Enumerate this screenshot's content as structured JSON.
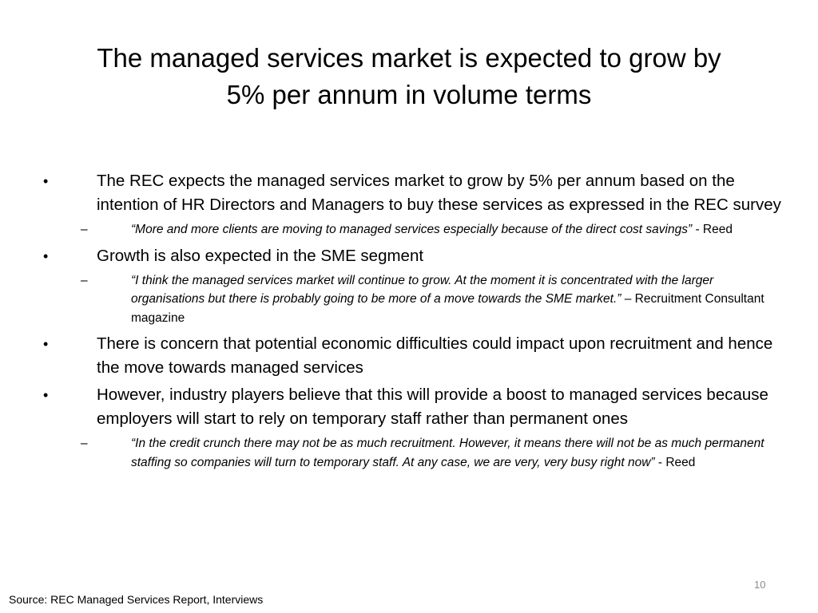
{
  "slide": {
    "title_line1": "The managed services market is expected to grow by",
    "title_line2": "5% per annum in volume terms",
    "bullets": [
      {
        "text": "The REC expects the managed services market to grow by 5% per annum based on the intention of HR Directors and Managers to buy these services as expressed in the REC survey",
        "sub": {
          "quote": "“More and more clients are moving to managed services especially because of the direct cost savings”",
          "attribution": " - Reed"
        }
      },
      {
        "text": "Growth is also expected in the SME segment",
        "sub": {
          "quote": "“I think the managed services market will continue to grow. At the moment it is concentrated with the larger organisations but there is probably going to be more of a move towards the SME market.”",
          "attribution": " – Recruitment Consultant magazine"
        }
      },
      {
        "text": "There is concern that potential economic difficulties could impact upon recruitment and hence the move towards managed services"
      },
      {
        "text": "However, industry players believe that this will provide a boost to managed services because employers will start to rely on temporary staff rather than permanent ones",
        "sub": {
          "quote": "“In the credit crunch there may not be as much recruitment. However, it means there will not be as much permanent staffing so companies will turn to temporary staff. At any case, we are very, very busy right now”",
          "attribution": " -  Reed"
        }
      }
    ],
    "bullet_symbol": "•",
    "sub_bullet_symbol": "–",
    "page_number": "10",
    "source": "Source: REC Managed Services Report, Interviews"
  }
}
